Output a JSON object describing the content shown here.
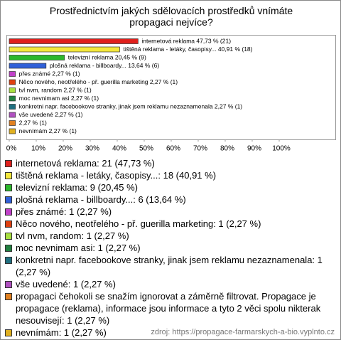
{
  "chart_data": {
    "type": "bar",
    "title": "Prostřednictvím jakých sdělovacích prostředků vnímáte propagaci nejvíce?",
    "categories": [
      "internetová reklama",
      "tištěná reklama - letáky, časopisy...",
      "televizní reklama",
      "plošná reklama - billboardy...",
      "přes známé",
      "Něco nového, neotřelého - př. guerilla marketing",
      "tvl nvm, random",
      "moc nevnimam asi",
      "konkretni napr. facebookove stranky, jinak jsem reklamu nezaznamenala",
      "vše uvedené",
      null,
      "nevnímám"
    ],
    "values": [
      47.73,
      40.91,
      20.45,
      13.64,
      2.27,
      2.27,
      2.27,
      2.27,
      2.27,
      2.27,
      2.27,
      2.27
    ],
    "value_labels": [
      "internetová reklama 47,73 % (21)",
      "tištěná reklama - letáky, časopisy... 40,91 % (18)",
      "televizní reklama 20,45 % (9)",
      "plošná reklama - billboardy... 13,64 % (6)",
      "přes známé 2,27 % (1)",
      "Něco nového, neotřelého - př. guerilla marketing 2,27 % (1)",
      "tvl nvm, random 2,27 % (1)",
      "moc nevnimam asi 2,27 % (1)",
      "konkretni napr. facebookove stranky, jinak jsem reklamu nezaznamenala 2,27 % (1)",
      "vše uvedené 2,27 % (1)",
      "2,27 % (1)",
      "nevnímám 2,27 % (1)"
    ],
    "colors": [
      "#e0201c",
      "#f4e83c",
      "#2cb82c",
      "#3060d8",
      "#c040c8",
      "#e04010",
      "#a8e040",
      "#208040",
      "#207080",
      "#b050c0",
      "#e08020",
      "#e0b020"
    ],
    "legend": [
      "internetová reklama: 21 (47,73 %)",
      "tištěná reklama - letáky, časopisy...: 18 (40,91 %)",
      "televizní reklama: 9 (20,45 %)",
      "plošná reklama - billboardy...: 6 (13,64 %)",
      "přes známé: 1 (2,27 %)",
      "Něco nového, neotřelého - př. guerilla marketing: 1 (2,27 %)",
      "tvl nvm, random: 1 (2,27 %)",
      "moc nevnimam asi: 1 (2,27 %)",
      "konkretni napr. facebookove stranky, jinak jsem reklamu nezaznamenala: 1 (2,27 %)",
      "vše uvedené: 1 (2,27 %)",
      "propagaci čehokoli se snažím ignorovat a záměrně filtrovat. Propagace je propagace (reklama), informace jsou informace a tyto 2 věci spolu nikterak nesouvisejí: 1 (2,27 %)",
      "nevnímám: 1 (2,27 %)"
    ],
    "xlim": [
      0,
      100
    ],
    "xticks": [
      {
        "value": 0,
        "label": "0%"
      },
      {
        "value": 10,
        "label": "10%"
      },
      {
        "value": 20,
        "label": "20%"
      },
      {
        "value": 30,
        "label": "30%"
      },
      {
        "value": 40,
        "label": "40%"
      },
      {
        "value": 50,
        "label": "50%"
      },
      {
        "value": 60,
        "label": "60%"
      },
      {
        "value": 70,
        "label": "70%"
      },
      {
        "value": 80,
        "label": "80%"
      },
      {
        "value": 90,
        "label": "90%"
      },
      {
        "value": 100,
        "label": "100%"
      }
    ],
    "source": "zdroj: https://propagace-farmarskych-a-bio.vyplnto.cz"
  }
}
